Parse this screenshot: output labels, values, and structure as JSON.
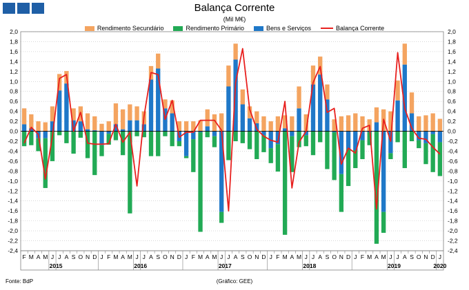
{
  "header": {
    "title": "Balança Corrente",
    "subtitle": "(Mil M€)"
  },
  "footer": {
    "source": "Fonte: BdP",
    "credit": "(Gráfico: GEE)"
  },
  "colors": {
    "secundario": "#f4a460",
    "primario": "#22aa55",
    "bens": "#1f78c8",
    "corrente": "#e8201e",
    "logo": "#1f5fa6"
  },
  "chart_data": {
    "type": "bar",
    "title": "Balança Corrente",
    "subtitle": "(Mil M€)",
    "ylim": [
      -2.4,
      2.0
    ],
    "yticks": [
      "2,0",
      "1,8",
      "1,6",
      "1,4",
      "1,2",
      "1,0",
      "0,8",
      "0,6",
      "0,4",
      "0,2",
      "0,0",
      "-0,2",
      "-0,4",
      "-0,6",
      "-0,8",
      "-1,0",
      "-1,2",
      "-1,4",
      "-1,6",
      "-1,8",
      "-2,0",
      "-2,2",
      "-2,4"
    ],
    "grid": true,
    "legend_position": "top",
    "month_labels": [
      "F",
      "M",
      "A",
      "M",
      "J",
      "J",
      "A",
      "S",
      "O",
      "N",
      "D",
      "J",
      "F",
      "M",
      "A",
      "M",
      "J",
      "J",
      "A",
      "S",
      "O",
      "N",
      "D",
      "J",
      "F",
      "M",
      "A",
      "M",
      "J",
      "J",
      "A",
      "S",
      "O",
      "N",
      "D",
      "J",
      "F",
      "M",
      "A",
      "M",
      "J",
      "J",
      "A",
      "S",
      "O",
      "N",
      "D",
      "J",
      "F",
      "M",
      "A",
      "M",
      "J",
      "J",
      "A",
      "S",
      "O",
      "N",
      "D",
      "J"
    ],
    "year_labels": [
      {
        "label": "2015",
        "month_index": 4.5
      },
      {
        "label": "2016",
        "month_index": 16.5
      },
      {
        "label": "2017",
        "month_index": 28.5
      },
      {
        "label": "2018",
        "month_index": 40.5
      },
      {
        "label": "2019",
        "month_index": 52.5
      },
      {
        "label": "2020",
        "month_index": 59
      }
    ],
    "series": [
      {
        "name": "Rendimento Secundário",
        "color_key": "secundario",
        "values": [
          0.32,
          0.28,
          0.2,
          0.18,
          0.3,
          0.33,
          0.25,
          0.24,
          0.3,
          0.32,
          0.28,
          0.15,
          0.2,
          0.42,
          0.4,
          0.32,
          0.28,
          0.26,
          0.27,
          0.3,
          0.18,
          0.26,
          0.2,
          0.2,
          0.2,
          0.22,
          0.34,
          0.34,
          0.36,
          0.42,
          0.32,
          0.3,
          0.24,
          0.24,
          0.3,
          0.2,
          0.3,
          0.26,
          0.3,
          0.44,
          0.34,
          0.38,
          0.36,
          0.3,
          0.24,
          0.3,
          0.32,
          0.36,
          0.3,
          0.24,
          0.3,
          0.44,
          0.4,
          0.4,
          0.42,
          0.42,
          0.3,
          0.32,
          0.36,
          0.25
        ]
      },
      {
        "name": "Rendimento Primário",
        "color_key": "primario",
        "values": [
          -0.3,
          -0.28,
          -0.26,
          -1.0,
          -0.6,
          -0.08,
          -0.24,
          -0.45,
          -0.13,
          -0.54,
          -0.88,
          -0.22,
          -0.22,
          -0.18,
          -0.48,
          -1.65,
          -0.1,
          -0.12,
          -0.5,
          -0.5,
          -0.1,
          -0.3,
          -0.1,
          -0.04,
          -0.66,
          -2.0,
          -0.12,
          -0.22,
          -0.22,
          -0.58,
          -0.2,
          -0.24,
          -0.36,
          -0.56,
          -0.34,
          -0.3,
          -0.55,
          -2.08,
          -0.72,
          -0.32,
          -0.22,
          -0.48,
          -0.22,
          -0.76,
          -0.96,
          -0.76,
          -0.74,
          -0.36,
          -0.38,
          -0.26,
          -2.26,
          -0.42,
          -0.12,
          -0.22,
          -0.74,
          -0.2,
          -0.16,
          -0.42,
          -0.76,
          -0.68
        ]
      },
      {
        "name": "Bens e Serviços",
        "color_key": "bens",
        "values": [
          0.14,
          0.06,
          -0.14,
          -0.14,
          0.2,
          0.82,
          0.96,
          0.22,
          0.2,
          0.04,
          0.02,
          -0.28,
          -0.05,
          0.14,
          0.04,
          0.22,
          0.22,
          0.14,
          1.04,
          1.26,
          0.46,
          0.36,
          -0.2,
          -0.5,
          -0.16,
          -0.02,
          0.1,
          -0.1,
          -1.62,
          0.9,
          1.44,
          0.54,
          0.26,
          0.16,
          -0.08,
          -0.34,
          -0.26,
          0.06,
          -0.1,
          0.46,
          -0.08,
          0.94,
          1.14,
          0.64,
          -0.02,
          -0.86,
          -0.36,
          -0.38,
          -0.18,
          -0.02,
          0.18,
          -1.62,
          -0.44,
          0.62,
          1.34,
          0.36,
          -0.18,
          -0.24,
          -0.06,
          -0.22
        ]
      },
      {
        "name": "Balança Corrente",
        "color_key": "corrente",
        "type": "line",
        "values": [
          -0.24,
          0.08,
          -0.06,
          -0.96,
          -0.1,
          1.06,
          1.14,
          0.0,
          0.38,
          -0.24,
          -0.26,
          -0.26,
          -0.25,
          0.14,
          -0.22,
          -0.02,
          -1.1,
          0.3,
          1.18,
          1.14,
          0.24,
          0.62,
          -0.12,
          -0.02,
          -0.02,
          0.22,
          0.22,
          0.22,
          0.02,
          -1.6,
          0.98,
          1.66,
          0.44,
          0.04,
          -0.1,
          -0.18,
          -0.22,
          0.6,
          -1.14,
          -0.22,
          0.0,
          0.98,
          1.3,
          0.38,
          0.46,
          -0.66,
          -0.34,
          -0.44,
          0.06,
          0.12,
          -1.56,
          0.24,
          -0.2,
          1.58,
          0.46,
          0.06,
          -0.14,
          -0.16,
          -0.32,
          -0.46
        ]
      }
    ]
  }
}
